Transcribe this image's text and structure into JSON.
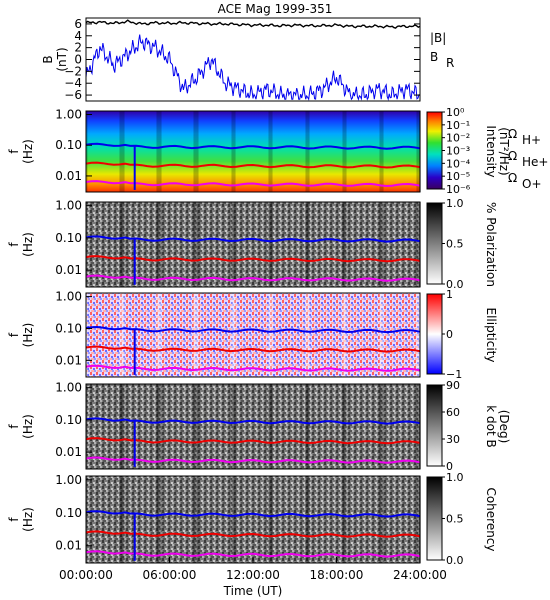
{
  "chart_data": {
    "type": "heatmap",
    "title": "ACE Mag 1999-351",
    "xlabel": "Time (UT)",
    "x_ticks": [
      "00:00:00",
      "06:00:00",
      "12:00:00",
      "18:00:00",
      "24:00:00"
    ],
    "xlim": [
      "00:00:00",
      "24:00:00"
    ],
    "panels": [
      {
        "id": "field",
        "type": "line",
        "ylabel": "B",
        "yunit": "(nT)",
        "ylim": [
          -7,
          7
        ],
        "y_ticks": [
          "6",
          "4",
          "2",
          "0",
          "−2",
          "−4",
          "−6"
        ],
        "legend": [
          "|B|",
          "B",
          "R"
        ],
        "series": [
          {
            "name": "|B|",
            "color": "#000000",
            "x": [
              "00:00",
              "01:00",
              "02:00",
              "03:00",
              "04:00",
              "05:00",
              "06:00",
              "07:00",
              "08:00",
              "09:00",
              "10:00",
              "11:00",
              "12:00",
              "13:00",
              "14:00",
              "15:00",
              "16:00",
              "17:00",
              "18:00",
              "19:00",
              "20:00",
              "21:00",
              "22:00",
              "23:00",
              "24:00"
            ],
            "values": [
              6.2,
              6.3,
              6.1,
              6.4,
              6.0,
              6.2,
              6.1,
              6.2,
              6.1,
              6.0,
              6.0,
              5.9,
              5.8,
              5.8,
              5.7,
              5.8,
              5.7,
              5.7,
              5.8,
              5.6,
              5.6,
              5.6,
              5.5,
              5.6,
              5.6
            ]
          },
          {
            "name": "B_R",
            "color": "#0000ee",
            "x": [
              "00:00",
              "01:00",
              "02:00",
              "03:00",
              "04:00",
              "05:00",
              "06:00",
              "07:00",
              "08:00",
              "09:00",
              "10:00",
              "11:00",
              "12:00",
              "13:00",
              "14:00",
              "15:00",
              "16:00",
              "17:00",
              "18:00",
              "19:00",
              "20:00",
              "21:00",
              "22:00",
              "23:00",
              "24:00"
            ],
            "values": [
              -3,
              2,
              -1,
              1,
              3,
              2,
              0,
              -5,
              -3,
              0,
              -4,
              -5,
              -6,
              -5,
              -6,
              -6,
              -6,
              -5,
              -3,
              -6,
              -6,
              -5,
              -6,
              -5,
              -6
            ]
          }
        ]
      },
      {
        "id": "intensity",
        "ylabel": "f",
        "yunit": "(Hz)",
        "y_ticks": [
          "1.00",
          "0.10",
          "0.01"
        ],
        "cbar_label": "Intensity",
        "cbar_unit": "(nT²/Hz)",
        "cbar_ticks": [
          "10⁰",
          "10⁻¹",
          "10⁻²",
          "10⁻³",
          "10⁻⁴",
          "10⁻⁵",
          "10⁻⁶"
        ]
      },
      {
        "id": "polarization",
        "ylabel": "f",
        "yunit": "(Hz)",
        "y_ticks": [
          "1.00",
          "0.10",
          "0.01"
        ],
        "cbar_label": "% Polarization",
        "cbar_ticks": [
          "1.0",
          "0.5",
          "0.0"
        ]
      },
      {
        "id": "ellipticity",
        "ylabel": "f",
        "yunit": "(Hz)",
        "y_ticks": [
          "1.00",
          "0.10",
          "0.01"
        ],
        "cbar_label": "Ellipticity",
        "cbar_ticks": [
          "1",
          "0",
          "−1"
        ]
      },
      {
        "id": "kdotb",
        "ylabel": "f",
        "yunit": "(Hz)",
        "y_ticks": [
          "1.00",
          "0.10",
          "0.01"
        ],
        "cbar_label": "k dot B",
        "cbar_unit": "(Deg)",
        "cbar_ticks": [
          "90",
          "60",
          "30",
          "0"
        ]
      },
      {
        "id": "coherency",
        "ylabel": "f",
        "yunit": "(Hz)",
        "y_ticks": [
          "1.00",
          "0.10",
          "0.01"
        ],
        "cbar_label": "Coherency",
        "cbar_ticks": [
          "1.0",
          "0.5",
          "0.0"
        ]
      }
    ],
    "overlay_lines": [
      {
        "name": "ΩH+",
        "color": "#0000ee",
        "freq_hz": 0.09
      },
      {
        "name": "ΩHe+",
        "color": "#ee0000",
        "freq_hz": 0.022
      },
      {
        "name": "ΩO+",
        "color": "#ee00ee",
        "freq_hz": 0.0055
      }
    ],
    "legend": [
      {
        "symbol": "Ω",
        "sub": "H+",
        "color": "#0000ee"
      },
      {
        "symbol": "Ω",
        "sub": "He+",
        "color": "#ee0000"
      },
      {
        "symbol": "Ω",
        "sub": "O+",
        "color": "#ee00ee"
      }
    ]
  }
}
